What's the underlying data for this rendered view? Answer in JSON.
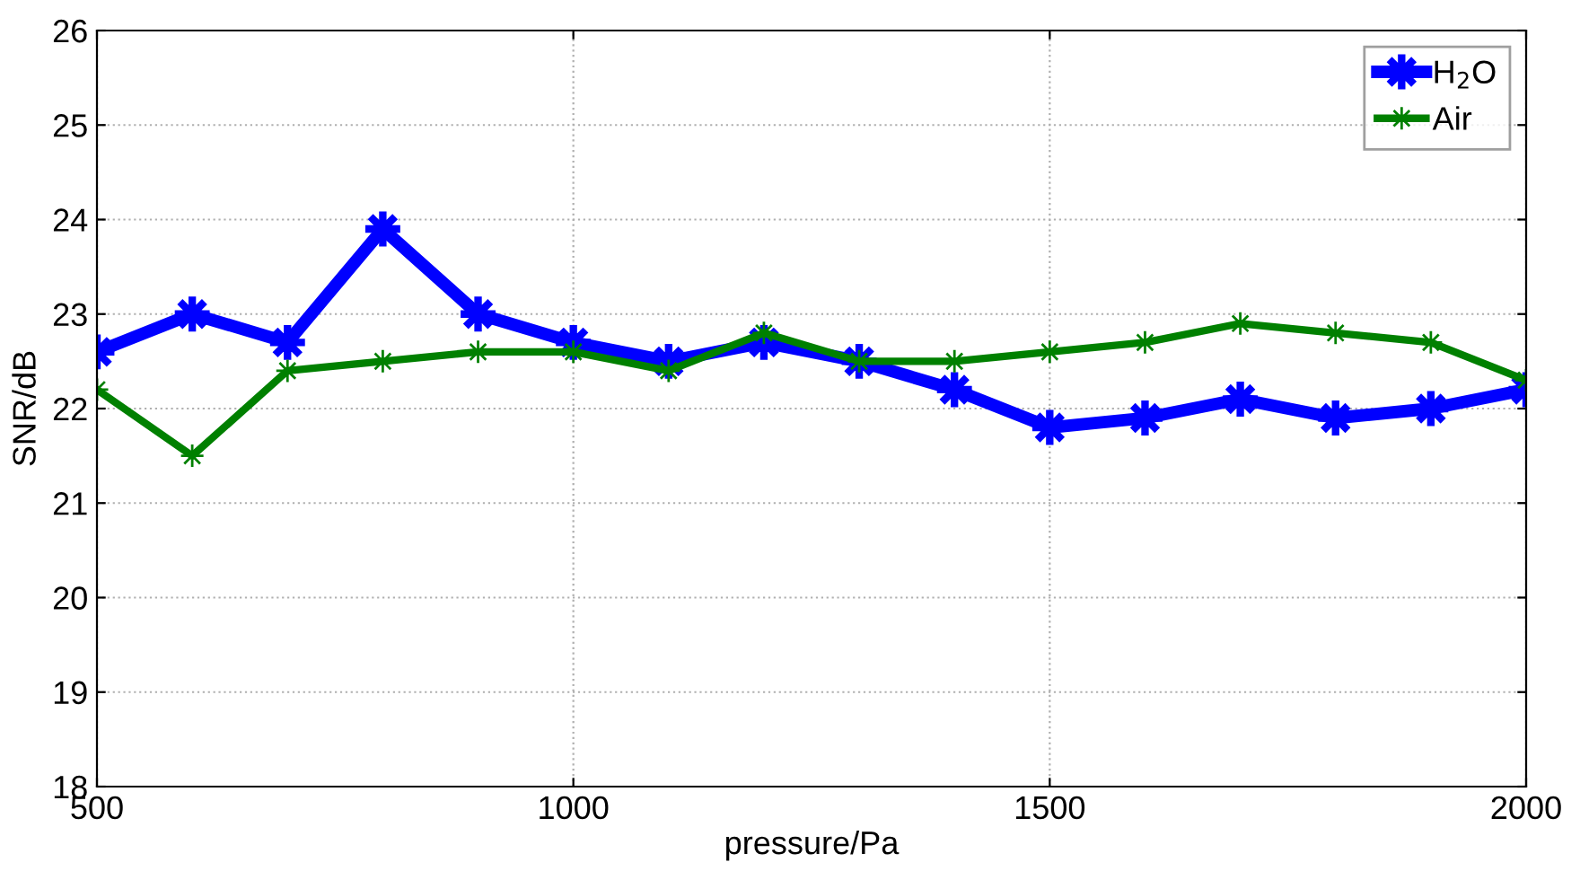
{
  "chart_data": {
    "type": "line",
    "xlabel": "pressure/Pa",
    "ylabel": "SNR/dB",
    "x": [
      500,
      600,
      700,
      800,
      900,
      1000,
      1100,
      1200,
      1300,
      1400,
      1500,
      1600,
      1700,
      1800,
      1900,
      2000
    ],
    "series": [
      {
        "name": "H$_{2}$O",
        "color": "#0000ff",
        "values": [
          22.6,
          23.0,
          22.7,
          23.9,
          23.0,
          22.7,
          22.5,
          22.7,
          22.5,
          22.2,
          21.8,
          21.9,
          22.1,
          21.9,
          22.0,
          22.2
        ]
      },
      {
        "name": "Air",
        "color": "#008000",
        "values": [
          22.2,
          21.5,
          22.4,
          22.5,
          22.6,
          22.6,
          22.4,
          22.8,
          22.5,
          22.5,
          22.6,
          22.7,
          22.9,
          22.8,
          22.7,
          22.3
        ]
      }
    ],
    "xlim": [
      500,
      2000
    ],
    "xticks": [
      500,
      1000,
      1500,
      2000
    ],
    "ylim": [
      18,
      26
    ],
    "yticks": [
      18,
      19,
      20,
      21,
      22,
      23,
      24,
      25,
      26
    ],
    "grid": true,
    "legend": "top right",
    "marker": "star",
    "line_style": "solid"
  }
}
